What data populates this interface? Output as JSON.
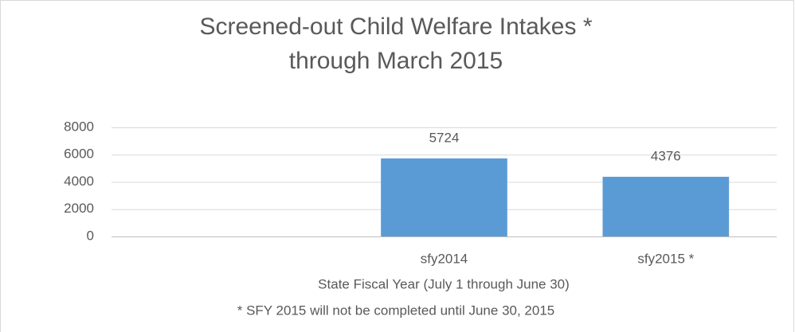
{
  "chart_data": {
    "type": "bar",
    "title": [
      "Screened-out Child Welfare Intakes *",
      "through March 2015"
    ],
    "categories": [
      null,
      "sfy2014",
      "sfy2015 *"
    ],
    "values": [
      null,
      5724,
      4376
    ],
    "color": "#5b9bd5",
    "ylim": [
      0,
      8000
    ],
    "yticks": [
      0,
      2000,
      4000,
      6000,
      8000
    ],
    "grid": true,
    "x_label": "State Fiscal Year (July 1 through June 30)",
    "annotation": "* SFY 2015 will not be completed until June 30, 2015"
  }
}
